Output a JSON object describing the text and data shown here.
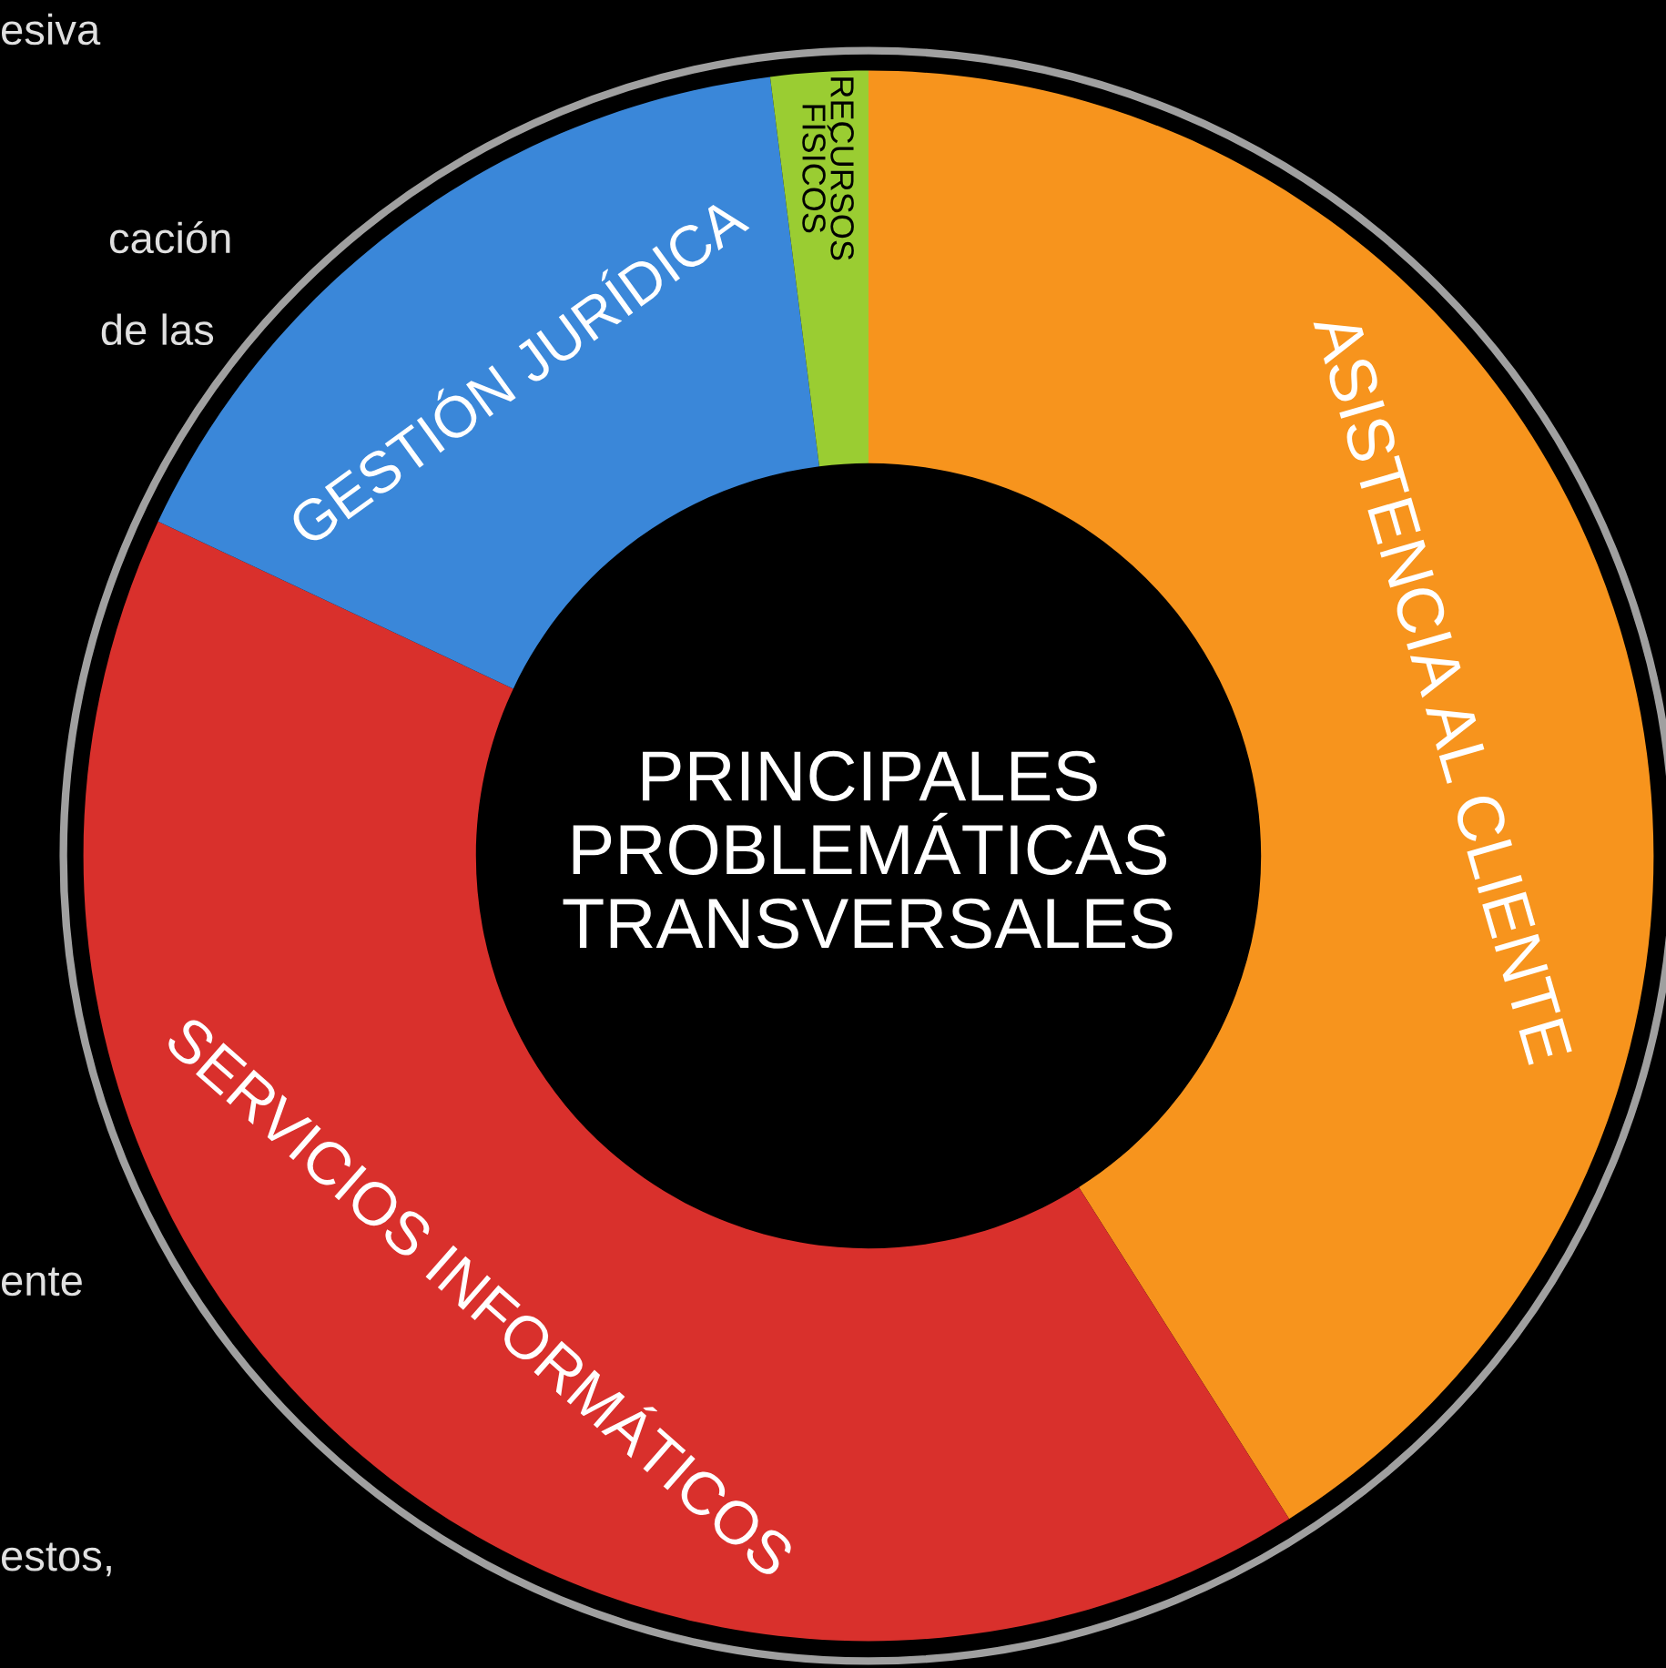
{
  "chart_data": {
    "type": "donut",
    "title": "PRINCIPALES\nPROBLEMÁTICAS\nTRANSVERSALES",
    "categories": [
      "ASISTENCIA AL CLIENTE",
      "SERVICIOS INFORMÁTICOS",
      "GESTIÓN JURÍDICA",
      "RECURSOS\nFÍSICOS"
    ],
    "values": [
      41,
      41,
      16,
      2
    ],
    "colors": [
      "#f7941d",
      "#d9302c",
      "#3a87d9",
      "#9acd32"
    ],
    "annotations": [
      "esiva",
      "cación",
      "de las",
      "ente",
      "estos,"
    ]
  }
}
